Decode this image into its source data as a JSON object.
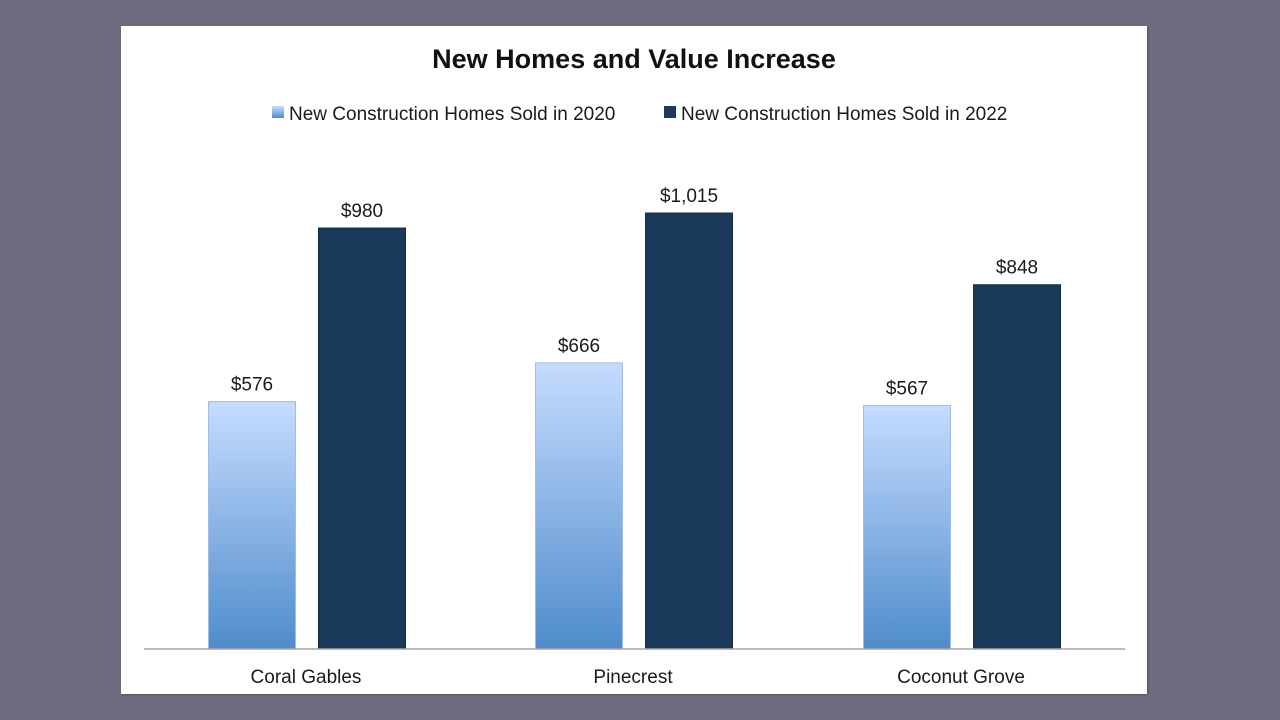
{
  "colors": {
    "background": "#6e6d7f",
    "panel": "#ffffff",
    "series_2020_top": "#c6dcff",
    "series_2020_bottom": "#4f8ccc",
    "series_2022": "#1b3a5a"
  },
  "chart_data": {
    "type": "bar",
    "title": "New Homes and Value Increase",
    "xlabel": "",
    "ylabel": "",
    "categories": [
      "Coral Gables",
      "Pinecrest",
      "Coconut Grove"
    ],
    "series": [
      {
        "name": "New Construction Homes Sold in 2020",
        "values": [
          576,
          666,
          567
        ],
        "labels": [
          "$576",
          "$666",
          "$567"
        ]
      },
      {
        "name": "New Construction Homes Sold in 2022",
        "values": [
          980,
          1015,
          848
        ],
        "labels": [
          "$980",
          "$1,015",
          "$848"
        ]
      }
    ],
    "ylim": [
      0,
      1100
    ],
    "grid": false,
    "legend_position": "top"
  }
}
